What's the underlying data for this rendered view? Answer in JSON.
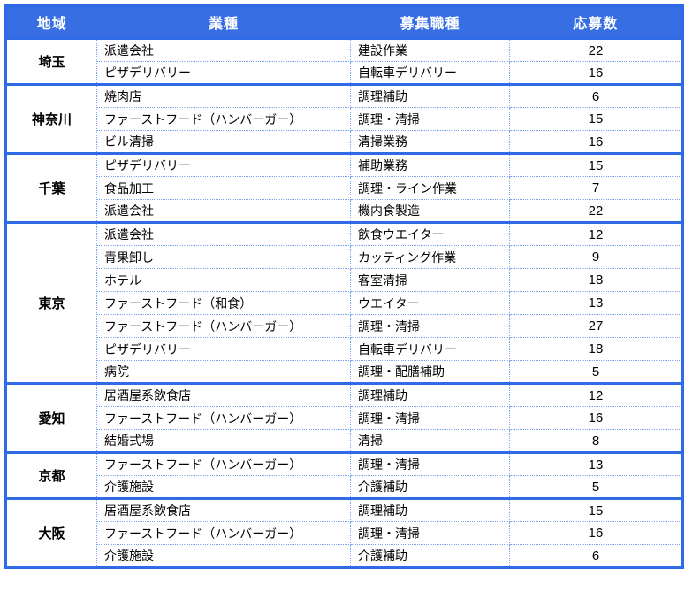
{
  "chart_data": {
    "type": "table",
    "title": "",
    "columns": [
      "地域",
      "業種",
      "募集職種",
      "応募数"
    ],
    "groups": [
      {
        "region": "埼玉",
        "rows": [
          [
            "派遣会社",
            "建設作業",
            "22"
          ],
          [
            "ピザデリバリー",
            "自転車デリバリー",
            "16"
          ]
        ]
      },
      {
        "region": "神奈川",
        "rows": [
          [
            "焼肉店",
            "調理補助",
            "6"
          ],
          [
            "ファーストフード（ハンバーガー）",
            "調理・清掃",
            "15"
          ],
          [
            "ビル清掃",
            "清掃業務",
            "16"
          ]
        ]
      },
      {
        "region": "千葉",
        "rows": [
          [
            "ピザデリバリー",
            "補助業務",
            "15"
          ],
          [
            "食品加工",
            "調理・ライン作業",
            "7"
          ],
          [
            "派遣会社",
            "機内食製造",
            "22"
          ]
        ]
      },
      {
        "region": "東京",
        "rows": [
          [
            "派遣会社",
            "飲食ウエイター",
            "12"
          ],
          [
            "青果卸し",
            "カッティング作業",
            "9"
          ],
          [
            "ホテル",
            "客室清掃",
            "18"
          ],
          [
            "ファーストフード（和食）",
            "ウエイター",
            "13"
          ],
          [
            "ファーストフード（ハンバーガー）",
            "調理・清掃",
            "27"
          ],
          [
            "ピザデリバリー",
            "自転車デリバリー",
            "18"
          ],
          [
            "病院",
            "調理・配膳補助",
            "5"
          ]
        ]
      },
      {
        "region": "愛知",
        "rows": [
          [
            "居酒屋系飲食店",
            "調理補助",
            "12"
          ],
          [
            "ファーストフード（ハンバーガー）",
            "調理・清掃",
            "16"
          ],
          [
            "結婚式場",
            "清掃",
            "8"
          ]
        ]
      },
      {
        "region": "京都",
        "rows": [
          [
            "ファーストフード（ハンバーガー）",
            "調理・清掃",
            "13"
          ],
          [
            "介護施設",
            "介護補助",
            "5"
          ]
        ]
      },
      {
        "region": "大阪",
        "rows": [
          [
            "居酒屋系飲食店",
            "調理補助",
            "15"
          ],
          [
            "ファーストフード（ハンバーガー）",
            "調理・清掃",
            "16"
          ],
          [
            "介護施設",
            "介護補助",
            "6"
          ]
        ]
      }
    ]
  },
  "colors": {
    "header_bg": "#376EE3",
    "header_text": "#FFFFFF",
    "border_solid": "#2F6BE6",
    "border_dotted": "#79A3F0"
  }
}
